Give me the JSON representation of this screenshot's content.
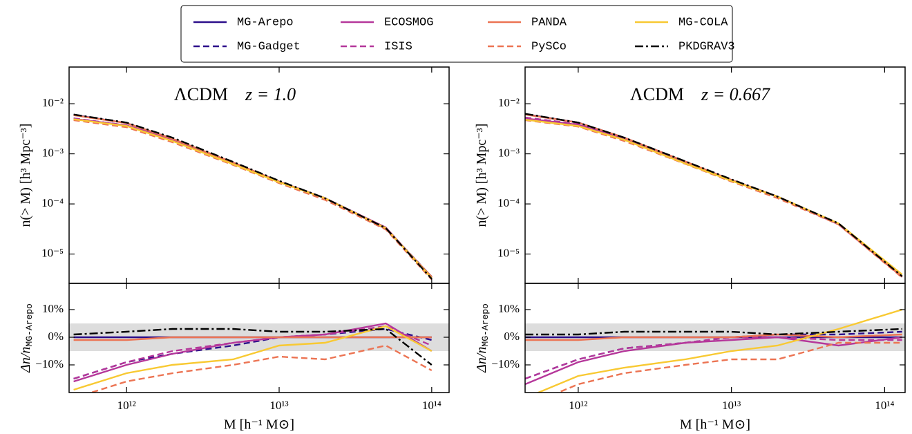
{
  "chart_data": [
    {
      "type": "line",
      "title": "ΛCDM",
      "subtitle": "z = 1.0",
      "ylabel": "n(> M) [h³ Mpc⁻³]",
      "ylog": true,
      "xlog": true,
      "legend": "upper center",
      "x": [
        450000000000.0,
        1000000000000.0,
        2000000000000.0,
        5000000000000.0,
        10000000000000.0,
        20000000000000.0,
        50000000000000.0,
        100000000000000.0
      ],
      "xlim": [
        420000000000.0,
        130000000000000.0
      ],
      "ylim": [
        2.6e-06,
        0.054
      ],
      "yticks": [
        {
          "value": 1e-05,
          "label": "10⁻⁵"
        },
        {
          "value": 0.0001,
          "label": "10⁻⁴"
        },
        {
          "value": 0.001,
          "label": "10⁻³"
        },
        {
          "value": 0.01,
          "label": "10⁻²"
        }
      ],
      "series": [
        {
          "name": "MG-Arepo",
          "color": "#2c0f8a",
          "dash": "solid",
          "values": [
            0.006,
            0.0041,
            0.002,
            0.00067,
            0.00028,
            0.00013,
            3.2e-05,
            3.5e-06
          ]
        },
        {
          "name": "MG-Gadget",
          "color": "#2c0f8a",
          "dash": "dashed",
          "values": [
            0.0051,
            0.0037,
            0.0019,
            0.00065,
            0.00028,
            0.00013,
            3.3e-05,
            3.5e-06
          ]
        },
        {
          "name": "ECOSMOG",
          "color": "#b5379a",
          "dash": "solid",
          "values": [
            0.005,
            0.0037,
            0.0019,
            0.00066,
            0.00028,
            0.00013,
            3.4e-05,
            3.3e-06
          ]
        },
        {
          "name": "ISIS",
          "color": "#b5379a",
          "dash": "dashed",
          "values": [
            0.0051,
            0.0037,
            0.0019,
            0.00066,
            0.00028,
            0.00013,
            3.3e-05,
            3.4e-06
          ]
        },
        {
          "name": "PANDA",
          "color": "#ec7453",
          "dash": "solid",
          "values": [
            0.0059,
            0.0041,
            0.002,
            0.00067,
            0.00028,
            0.00013,
            3.2e-05,
            3.5e-06
          ]
        },
        {
          "name": "PySCo",
          "color": "#ec7453",
          "dash": "dashed",
          "values": [
            0.0047,
            0.0034,
            0.0017,
            0.0006,
            0.00026,
            0.00012,
            3.1e-05,
            3.1e-06
          ]
        },
        {
          "name": "MG-COLA",
          "color": "#f8c932",
          "dash": "solid",
          "values": [
            0.0049,
            0.0036,
            0.0018,
            0.00062,
            0.00027,
            0.00013,
            3.3e-05,
            3.3e-06
          ]
        },
        {
          "name": "PKDGRAV3",
          "color": "#000000",
          "dash": "dashdot",
          "values": [
            0.0061,
            0.0042,
            0.0021,
            0.00069,
            0.00029,
            0.00013,
            3.3e-05,
            3.2e-06
          ]
        }
      ]
    },
    {
      "type": "line",
      "ylabel": "Δn/n",
      "ylabel_sub": "MG-Arepo",
      "xlabel": "M [h⁻¹ M⊙]",
      "xlog": true,
      "x": [
        450000000000.0,
        1000000000000.0,
        2000000000000.0,
        5000000000000.0,
        10000000000000.0,
        20000000000000.0,
        50000000000000.0,
        100000000000000.0
      ],
      "xlim": [
        420000000000.0,
        130000000000000.0
      ],
      "ylim": [
        -20,
        19.5
      ],
      "band": [
        -5,
        5
      ],
      "band_color": "#dddddd",
      "xticks": [
        {
          "value": 1000000000000.0,
          "label": "10¹²"
        },
        {
          "value": 10000000000000.0,
          "label": "10¹³"
        },
        {
          "value": 100000000000000.0,
          "label": "10¹⁴"
        }
      ],
      "yticks": [
        {
          "value": -10,
          "label": "−10%"
        },
        {
          "value": 0,
          "label": "0%"
        },
        {
          "value": 10,
          "label": "10%"
        }
      ],
      "series": [
        {
          "color": "#2c0f8a",
          "dash": "solid",
          "values": [
            0,
            0,
            0,
            0,
            0,
            0,
            0,
            0
          ]
        },
        {
          "color": "#2c0f8a",
          "dash": "dashed",
          "values": [
            -15,
            -9,
            -6,
            -3,
            0,
            1,
            3,
            -1
          ]
        },
        {
          "color": "#b5379a",
          "dash": "solid",
          "values": [
            -16,
            -10,
            -6,
            -2,
            0,
            1,
            5,
            -5
          ]
        },
        {
          "color": "#b5379a",
          "dash": "dashed",
          "values": [
            -15,
            -9,
            -5,
            -2,
            0,
            1,
            4,
            -3
          ]
        },
        {
          "color": "#ec7453",
          "dash": "solid",
          "values": [
            -1,
            -1,
            0,
            0,
            0,
            0,
            0,
            0
          ]
        },
        {
          "color": "#ec7453",
          "dash": "dashed",
          "values": [
            -22,
            -16,
            -13,
            -10,
            -7,
            -8,
            -3,
            -12
          ]
        },
        {
          "color": "#f8c932",
          "dash": "solid",
          "values": [
            -19,
            -13,
            -10,
            -8,
            -3,
            -2,
            4,
            -5
          ]
        },
        {
          "color": "#000000",
          "dash": "dashdot",
          "values": [
            1,
            2,
            3,
            3,
            2,
            2,
            3,
            -10
          ]
        }
      ]
    },
    {
      "type": "line",
      "title": "ΛCDM",
      "subtitle": "z = 0.667",
      "ylabel": "n(> M) [h³ Mpc⁻³]",
      "ylog": true,
      "xlog": true,
      "x": [
        450000000000.0,
        1000000000000.0,
        2000000000000.0,
        5000000000000.0,
        10000000000000.0,
        20000000000000.0,
        50000000000000.0,
        130000000000000.0
      ],
      "xlim": [
        450000000000.0,
        136000000000000.0
      ],
      "ylim": [
        2.6e-06,
        0.054
      ],
      "yticks": [
        {
          "value": 1e-05,
          "label": "10⁻⁵"
        },
        {
          "value": 0.0001,
          "label": "10⁻⁴"
        },
        {
          "value": 0.001,
          "label": "10⁻³"
        },
        {
          "value": 0.01,
          "label": "10⁻²"
        }
      ],
      "series": [
        {
          "color": "#2c0f8a",
          "dash": "solid",
          "values": [
            0.0062,
            0.0042,
            0.0021,
            0.0007,
            0.0003,
            0.00014,
            4e-05,
            3.5e-06
          ]
        },
        {
          "color": "#2c0f8a",
          "dash": "dashed",
          "values": [
            0.0053,
            0.0039,
            0.002,
            0.00069,
            0.0003,
            0.00014,
            4e-05,
            3.6e-06
          ]
        },
        {
          "color": "#b5379a",
          "dash": "solid",
          "values": [
            0.0051,
            0.0038,
            0.002,
            0.00069,
            0.0003,
            0.00014,
            3.9e-05,
            3.5e-06
          ]
        },
        {
          "color": "#b5379a",
          "dash": "dashed",
          "values": [
            0.0053,
            0.0039,
            0.002,
            0.00069,
            0.0003,
            0.00014,
            4e-05,
            3.5e-06
          ]
        },
        {
          "color": "#ec7453",
          "dash": "solid",
          "values": [
            0.0061,
            0.0042,
            0.0021,
            0.0007,
            0.0003,
            0.00014,
            4e-05,
            3.5e-06
          ]
        },
        {
          "color": "#ec7453",
          "dash": "dashed",
          "values": [
            0.0047,
            0.0035,
            0.0018,
            0.00063,
            0.00028,
            0.00013,
            3.9e-05,
            3.4e-06
          ]
        },
        {
          "color": "#f8c932",
          "dash": "solid",
          "values": [
            0.0048,
            0.0036,
            0.0019,
            0.00064,
            0.00029,
            0.00014,
            4.1e-05,
            3.9e-06
          ]
        },
        {
          "color": "#000000",
          "dash": "dashdot",
          "values": [
            0.0063,
            0.0042,
            0.0021,
            0.00071,
            0.00031,
            0.00014,
            4.1e-05,
            3.6e-06
          ]
        }
      ]
    },
    {
      "type": "line",
      "ylabel": "Δn/n",
      "ylabel_sub": "MG-Arepo",
      "xlabel": "M [h⁻¹ M⊙]",
      "xlog": true,
      "x": [
        450000000000.0,
        1000000000000.0,
        2000000000000.0,
        5000000000000.0,
        10000000000000.0,
        20000000000000.0,
        50000000000000.0,
        130000000000000.0
      ],
      "xlim": [
        450000000000.0,
        136000000000000.0
      ],
      "ylim": [
        -20,
        19.5
      ],
      "band": [
        -5,
        5
      ],
      "band_color": "#dddddd",
      "xticks": [
        {
          "value": 1000000000000.0,
          "label": "10¹²"
        },
        {
          "value": 10000000000000.0,
          "label": "10¹³"
        },
        {
          "value": 100000000000000.0,
          "label": "10¹⁴"
        }
      ],
      "yticks": [
        {
          "value": -10,
          "label": "−10%"
        },
        {
          "value": 0,
          "label": "0%"
        },
        {
          "value": 10,
          "label": "10%"
        }
      ],
      "series": [
        {
          "color": "#2c0f8a",
          "dash": "solid",
          "values": [
            0,
            0,
            0,
            0,
            0,
            0,
            0,
            0
          ]
        },
        {
          "color": "#2c0f8a",
          "dash": "dashed",
          "values": [
            -15,
            -8,
            -4,
            -2,
            0,
            1,
            1,
            2
          ]
        },
        {
          "color": "#b5379a",
          "dash": "solid",
          "values": [
            -17,
            -9,
            -5,
            -2,
            -1,
            0,
            -3,
            0
          ]
        },
        {
          "color": "#b5379a",
          "dash": "dashed",
          "values": [
            -15,
            -8,
            -4,
            -2,
            0,
            0,
            -1,
            -1
          ]
        },
        {
          "color": "#ec7453",
          "dash": "solid",
          "values": [
            -1,
            -1,
            0,
            0,
            0,
            1,
            0,
            1
          ]
        },
        {
          "color": "#ec7453",
          "dash": "dashed",
          "values": [
            -25,
            -17,
            -13,
            -10,
            -8,
            -8,
            -2,
            -2
          ]
        },
        {
          "color": "#f8c932",
          "dash": "solid",
          "values": [
            -22,
            -14,
            -11,
            -8,
            -5,
            -3,
            3,
            10
          ]
        },
        {
          "color": "#000000",
          "dash": "dashdot",
          "values": [
            1,
            1,
            2,
            2,
            2,
            1,
            2,
            3
          ]
        }
      ]
    }
  ]
}
